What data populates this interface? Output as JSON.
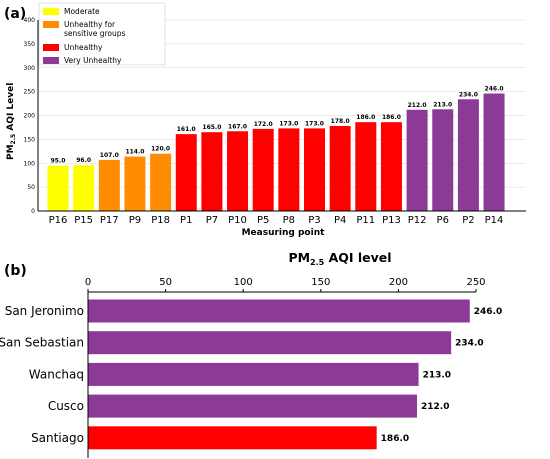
{
  "panel_a_label": "(a)",
  "panel_b_label": "(b)",
  "chart_data": [
    {
      "type": "bar",
      "orientation": "vertical",
      "categories": [
        "P16",
        "P15",
        "P17",
        "P9",
        "P18",
        "P1",
        "P7",
        "P10",
        "P5",
        "P8",
        "P3",
        "P4",
        "P11",
        "P13",
        "P12",
        "P6",
        "P2",
        "P14"
      ],
      "values": [
        95.0,
        96.0,
        107.0,
        114.0,
        120.0,
        161.0,
        165.0,
        167.0,
        172.0,
        173.0,
        173.0,
        178.0,
        186.0,
        186.0,
        212.0,
        213.0,
        234.0,
        246.0
      ],
      "value_labels": [
        "95.0",
        "96.0",
        "107.0",
        "114.0",
        "120.0",
        "161.0",
        "165.0",
        "167.0",
        "172.0",
        "173.0",
        "173.0",
        "178.0",
        "186.0",
        "186.0",
        "212.0",
        "213.0",
        "234.0",
        "246.0"
      ],
      "categories_class": [
        "Moderate",
        "Moderate",
        "Unhealthy for sensitive groups",
        "Unhealthy for sensitive groups",
        "Unhealthy for sensitive groups",
        "Unhealthy",
        "Unhealthy",
        "Unhealthy",
        "Unhealthy",
        "Unhealthy",
        "Unhealthy",
        "Unhealthy",
        "Unhealthy",
        "Unhealthy",
        "Very Unhealthy",
        "Very Unhealthy",
        "Very Unhealthy",
        "Very Unhealthy"
      ],
      "xlabel": "Measuring point",
      "ylabel_main": "PM",
      "ylabel_sub": "2.5",
      "ylabel_tail": " AQI Level",
      "ylim": [
        0,
        400
      ],
      "yticks": [
        0,
        50,
        100,
        150,
        200,
        250,
        300,
        350,
        400
      ],
      "grid": true,
      "legend_position": "top-left",
      "legend": [
        {
          "name": "Moderate",
          "lines": [
            "Moderate"
          ],
          "color": "#ffff00"
        },
        {
          "name": "Unhealthy for sensitive groups",
          "lines": [
            "Unhealthy for",
            "sensitive groups"
          ],
          "color": "#ff8c00"
        },
        {
          "name": "Unhealthy",
          "lines": [
            "Unhealthy"
          ],
          "color": "#ff0000"
        },
        {
          "name": "Very Unhealthy",
          "lines": [
            "Very Unhealthy"
          ],
          "color": "#8b3a96"
        }
      ]
    },
    {
      "type": "bar",
      "orientation": "horizontal",
      "title_main": "PM",
      "title_sub": "2.5",
      "title_tail": " AQI level",
      "categories": [
        "San Jeronimo",
        "San Sebastian",
        "Wanchaq",
        "Cusco",
        "Santiago"
      ],
      "values": [
        246.0,
        234.0,
        213.0,
        212.0,
        186.0
      ],
      "value_labels": [
        "246.0",
        "234.0",
        "213.0",
        "212.0",
        "186.0"
      ],
      "colors": [
        "#8b3a96",
        "#8b3a96",
        "#8b3a96",
        "#8b3a96",
        "#ff0000"
      ],
      "xlim": [
        0,
        250
      ],
      "xticks": [
        0,
        50,
        100,
        150,
        200,
        250
      ],
      "xaxis_position": "top"
    }
  ]
}
